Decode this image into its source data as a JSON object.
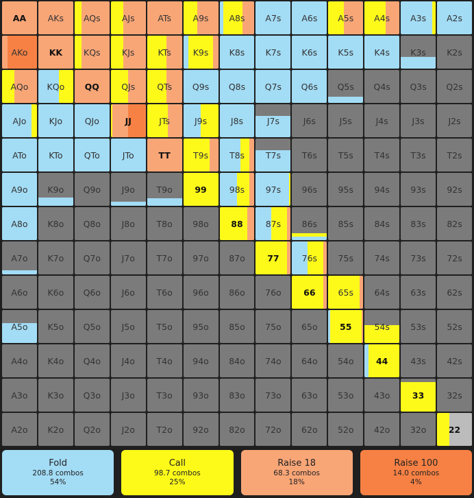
{
  "colors": {
    "fold": "#a3dcf5",
    "call": "#fdfa1a",
    "raise_small": "#f9a677",
    "raise_big": "#f78144",
    "none": "#7b7b7b",
    "neutral": "#bcbcbc",
    "legend_fold": "#a3dcf5",
    "legend_call": "#fdfa1a",
    "legend_raise_small": "#f9a677",
    "legend_raise_big": "#f78144"
  },
  "grid": {
    "rows": [
      [
        {
          "label": "AA",
          "mix": {
            "raise_small": 1.0
          }
        },
        {
          "label": "AKs",
          "mix": {
            "raise_small": 1.0
          }
        },
        {
          "label": "AQs",
          "mix": {
            "call": 0.2,
            "raise_small": 0.8
          }
        },
        {
          "label": "AJs",
          "mix": {
            "call": 0.35,
            "raise_small": 0.65
          }
        },
        {
          "label": "ATs",
          "mix": {
            "raise_small": 1.0
          }
        },
        {
          "label": "A9s",
          "mix": {
            "call": 0.4,
            "raise_small": 0.6
          }
        },
        {
          "label": "A8s",
          "mix": {
            "fold": 0.1,
            "call": 0.55,
            "raise_small": 0.35
          }
        },
        {
          "label": "A7s",
          "mix": {
            "fold": 1.0
          }
        },
        {
          "label": "A6s",
          "mix": {
            "fold": 1.0
          }
        },
        {
          "label": "A5s",
          "mix": {
            "call": 0.45,
            "raise_small": 0.55
          }
        },
        {
          "label": "A4s",
          "mix": {
            "call": 0.6,
            "raise_small": 0.4
          }
        },
        {
          "label": "A3s",
          "mix": {
            "fold": 0.9,
            "call": 0.1
          }
        },
        {
          "label": "A2s",
          "mix": {
            "fold": 1.0
          }
        }
      ],
      [
        {
          "label": "AKo",
          "mix": {
            "raise_small": 0.15,
            "raise_big": 0.85
          }
        },
        {
          "label": "KK",
          "mix": {
            "raise_small": 1.0
          }
        },
        {
          "label": "KQs",
          "mix": {
            "call": 0.2,
            "raise_small": 0.8
          }
        },
        {
          "label": "KJs",
          "mix": {
            "call": 0.35,
            "raise_small": 0.65
          }
        },
        {
          "label": "KTs",
          "mix": {
            "call": 0.55,
            "raise_small": 0.45
          }
        },
        {
          "label": "K9s",
          "mix": {
            "fold": 0.15,
            "call": 0.7,
            "raise_small": 0.15
          }
        },
        {
          "label": "K8s",
          "mix": {
            "fold": 1.0
          }
        },
        {
          "label": "K7s",
          "mix": {
            "fold": 1.0
          }
        },
        {
          "label": "K6s",
          "mix": {
            "fold": 1.0
          }
        },
        {
          "label": "K5s",
          "mix": {
            "fold": 1.0
          }
        },
        {
          "label": "K4s",
          "mix": {
            "fold": 1.0
          }
        },
        {
          "label": "K3s",
          "mix": {
            "fold": 0.35
          }
        },
        {
          "label": "K2s",
          "mix": {}
        }
      ],
      [
        {
          "label": "AQo",
          "mix": {
            "call": 0.35,
            "raise_small": 0.65
          }
        },
        {
          "label": "KQo",
          "mix": {
            "fold": 0.6,
            "call": 0.4
          }
        },
        {
          "label": "QQ",
          "mix": {
            "raise_small": 1.0
          }
        },
        {
          "label": "QJs",
          "mix": {
            "call": 0.5,
            "raise_small": 0.5
          }
        },
        {
          "label": "QTs",
          "mix": {
            "call": 0.55,
            "raise_small": 0.45
          }
        },
        {
          "label": "Q9s",
          "mix": {
            "fold": 1.0
          }
        },
        {
          "label": "Q8s",
          "mix": {
            "fold": 1.0
          }
        },
        {
          "label": "Q7s",
          "mix": {
            "fold": 1.0
          }
        },
        {
          "label": "Q6s",
          "mix": {
            "fold": 1.0
          }
        },
        {
          "label": "Q5s",
          "mix": {
            "fold": 0.18
          }
        },
        {
          "label": "Q4s",
          "mix": {}
        },
        {
          "label": "Q3s",
          "mix": {}
        },
        {
          "label": "Q2s",
          "mix": {}
        }
      ],
      [
        {
          "label": "AJo",
          "mix": {
            "fold": 0.85,
            "call": 0.15
          }
        },
        {
          "label": "KJo",
          "mix": {
            "fold": 1.0
          }
        },
        {
          "label": "QJo",
          "mix": {
            "fold": 1.0
          }
        },
        {
          "label": "JJ",
          "mix": {
            "call": 0.05,
            "raise_small": 0.45,
            "raise_big": 0.5
          }
        },
        {
          "label": "JTs",
          "mix": {
            "call": 0.6,
            "raise_small": 0.4
          }
        },
        {
          "label": "J9s",
          "mix": {
            "fold": 0.5,
            "call": 0.5
          }
        },
        {
          "label": "J8s",
          "mix": {
            "fold": 1.0
          }
        },
        {
          "label": "J7s",
          "mix": {
            "fold": 0.65
          }
        },
        {
          "label": "J6s",
          "mix": {}
        },
        {
          "label": "J5s",
          "mix": {}
        },
        {
          "label": "J4s",
          "mix": {}
        },
        {
          "label": "J3s",
          "mix": {}
        },
        {
          "label": "J2s",
          "mix": {}
        }
      ],
      [
        {
          "label": "ATo",
          "mix": {
            "fold": 1.0
          }
        },
        {
          "label": "KTo",
          "mix": {
            "fold": 1.0
          }
        },
        {
          "label": "QTo",
          "mix": {
            "fold": 1.0
          }
        },
        {
          "label": "JTo",
          "mix": {
            "fold": 1.0
          }
        },
        {
          "label": "TT",
          "mix": {
            "raise_small": 1.0
          }
        },
        {
          "label": "T9s",
          "mix": {
            "call": 0.75,
            "raise_small": 0.25
          }
        },
        {
          "label": "T8s",
          "mix": {
            "fold": 0.6,
            "call": 0.25,
            "raise_small": 0.15
          }
        },
        {
          "label": "T7s",
          "mix": {
            "fold": 0.65
          }
        },
        {
          "label": "T6s",
          "mix": {}
        },
        {
          "label": "T5s",
          "mix": {}
        },
        {
          "label": "T4s",
          "mix": {}
        },
        {
          "label": "T3s",
          "mix": {}
        },
        {
          "label": "T2s",
          "mix": {}
        }
      ],
      [
        {
          "label": "A9o",
          "mix": {
            "fold": 1.0
          }
        },
        {
          "label": "K9o",
          "mix": {
            "fold": 0.25
          }
        },
        {
          "label": "Q9o",
          "mix": {}
        },
        {
          "label": "J9o",
          "mix": {
            "fold": 0.12
          }
        },
        {
          "label": "T9o",
          "mix": {
            "fold": 0.22
          }
        },
        {
          "label": "99",
          "mix": {
            "call": 1.0
          }
        },
        {
          "label": "98s",
          "mix": {
            "fold": 0.5,
            "call": 0.35,
            "raise_small": 0.15
          }
        },
        {
          "label": "97s",
          "mix": {
            "fold": 0.95,
            "call": 0.05
          }
        },
        {
          "label": "96s",
          "mix": {}
        },
        {
          "label": "95s",
          "mix": {}
        },
        {
          "label": "94s",
          "mix": {}
        },
        {
          "label": "93s",
          "mix": {}
        },
        {
          "label": "92s",
          "mix": {}
        }
      ],
      [
        {
          "label": "A8o",
          "mix": {
            "fold": 1.0
          }
        },
        {
          "label": "K8o",
          "mix": {}
        },
        {
          "label": "Q8o",
          "mix": {}
        },
        {
          "label": "J8o",
          "mix": {}
        },
        {
          "label": "T8o",
          "mix": {}
        },
        {
          "label": "98o",
          "mix": {}
        },
        {
          "label": "88",
          "mix": {
            "call": 0.8,
            "raise_small": 0.2
          }
        },
        {
          "label": "87s",
          "mix": {
            "fold": 0.45,
            "call": 0.45,
            "raise_small": 0.1
          }
        },
        {
          "label": "86s",
          "mix": {
            "fold": 0.1,
            "call": 0.1
          }
        },
        {
          "label": "85s",
          "mix": {}
        },
        {
          "label": "84s",
          "mix": {}
        },
        {
          "label": "83s",
          "mix": {}
        },
        {
          "label": "82s",
          "mix": {}
        }
      ],
      [
        {
          "label": "A7o",
          "mix": {
            "fold": 0.12
          }
        },
        {
          "label": "K7o",
          "mix": {}
        },
        {
          "label": "Q7o",
          "mix": {}
        },
        {
          "label": "J7o",
          "mix": {}
        },
        {
          "label": "T7o",
          "mix": {}
        },
        {
          "label": "97o",
          "mix": {}
        },
        {
          "label": "87o",
          "mix": {}
        },
        {
          "label": "77",
          "mix": {
            "call": 0.9,
            "raise_small": 0.1
          }
        },
        {
          "label": "76s",
          "mix": {
            "fold": 0.45,
            "call": 0.45,
            "raise_small": 0.1
          }
        },
        {
          "label": "75s",
          "mix": {}
        },
        {
          "label": "74s",
          "mix": {}
        },
        {
          "label": "73s",
          "mix": {}
        },
        {
          "label": "72s",
          "mix": {}
        }
      ],
      [
        {
          "label": "A6o",
          "mix": {}
        },
        {
          "label": "K6o",
          "mix": {}
        },
        {
          "label": "Q6o",
          "mix": {}
        },
        {
          "label": "J6o",
          "mix": {}
        },
        {
          "label": "T6o",
          "mix": {}
        },
        {
          "label": "96o",
          "mix": {}
        },
        {
          "label": "86o",
          "mix": {}
        },
        {
          "label": "76o",
          "mix": {}
        },
        {
          "label": "66",
          "mix": {
            "call": 0.9,
            "raise_small": 0.1
          }
        },
        {
          "label": "65s",
          "mix": {
            "call": 0.9,
            "raise_small": 0.1
          }
        },
        {
          "label": "64s",
          "mix": {}
        },
        {
          "label": "63s",
          "mix": {}
        },
        {
          "label": "62s",
          "mix": {}
        }
      ],
      [
        {
          "label": "A5o",
          "mix": {
            "fold": 0.6
          }
        },
        {
          "label": "K5o",
          "mix": {}
        },
        {
          "label": "Q5o",
          "mix": {}
        },
        {
          "label": "J5o",
          "mix": {}
        },
        {
          "label": "T5o",
          "mix": {}
        },
        {
          "label": "95o",
          "mix": {}
        },
        {
          "label": "85o",
          "mix": {}
        },
        {
          "label": "75o",
          "mix": {}
        },
        {
          "label": "65o",
          "mix": {}
        },
        {
          "label": "55",
          "mix": {
            "fold": 0.05,
            "call": 0.9,
            "raise_small": 0.05
          }
        },
        {
          "label": "54s",
          "mix": {
            "call": 0.55
          }
        },
        {
          "label": "53s",
          "mix": {}
        },
        {
          "label": "52s",
          "mix": {}
        }
      ],
      [
        {
          "label": "A4o",
          "mix": {}
        },
        {
          "label": "K4o",
          "mix": {}
        },
        {
          "label": "Q4o",
          "mix": {}
        },
        {
          "label": "J4o",
          "mix": {}
        },
        {
          "label": "T4o",
          "mix": {}
        },
        {
          "label": "94o",
          "mix": {}
        },
        {
          "label": "84o",
          "mix": {}
        },
        {
          "label": "74o",
          "mix": {}
        },
        {
          "label": "64o",
          "mix": {}
        },
        {
          "label": "54o",
          "mix": {}
        },
        {
          "label": "44",
          "mix": {
            "fold": 0.12,
            "call": 0.88
          }
        },
        {
          "label": "43s",
          "mix": {}
        },
        {
          "label": "42s",
          "mix": {}
        }
      ],
      [
        {
          "label": "A3o",
          "mix": {}
        },
        {
          "label": "K3o",
          "mix": {}
        },
        {
          "label": "Q3o",
          "mix": {}
        },
        {
          "label": "J3o",
          "mix": {}
        },
        {
          "label": "T3o",
          "mix": {}
        },
        {
          "label": "93o",
          "mix": {}
        },
        {
          "label": "83o",
          "mix": {}
        },
        {
          "label": "73o",
          "mix": {}
        },
        {
          "label": "63o",
          "mix": {}
        },
        {
          "label": "53o",
          "mix": {}
        },
        {
          "label": "43o",
          "mix": {}
        },
        {
          "label": "33",
          "mix": {
            "call": 0.9
          }
        },
        {
          "label": "32s",
          "mix": {}
        }
      ],
      [
        {
          "label": "A2o",
          "mix": {}
        },
        {
          "label": "K2o",
          "mix": {}
        },
        {
          "label": "Q2o",
          "mix": {}
        },
        {
          "label": "J2o",
          "mix": {}
        },
        {
          "label": "T2o",
          "mix": {}
        },
        {
          "label": "92o",
          "mix": {}
        },
        {
          "label": "82o",
          "mix": {}
        },
        {
          "label": "72o",
          "mix": {}
        },
        {
          "label": "62o",
          "mix": {}
        },
        {
          "label": "52o",
          "mix": {}
        },
        {
          "label": "42o",
          "mix": {}
        },
        {
          "label": "32o",
          "mix": {}
        },
        {
          "label": "22",
          "mix": {
            "call": 0.35,
            "neutral": 0.65
          }
        }
      ]
    ]
  },
  "legend": {
    "fold": {
      "title": "Fold",
      "combos": "208.8 combos",
      "pct": "54%"
    },
    "call": {
      "title": "Call",
      "combos": "98.7 combos",
      "pct": "25%"
    },
    "raise_small": {
      "title": "Raise 18",
      "combos": "68.3 combos",
      "pct": "18%"
    },
    "raise_big": {
      "title": "Raise 100",
      "combos": "14.0 combos",
      "pct": "4%"
    }
  }
}
